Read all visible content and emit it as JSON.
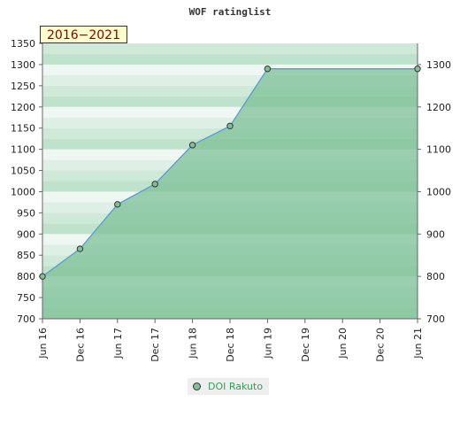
{
  "chart_data": {
    "type": "area",
    "title": "WOF ratinglist",
    "period_label": "2016−2021",
    "x": [
      "Jun 16",
      "Dec 16",
      "Jun 17",
      "Dec 17",
      "Jun 18",
      "Dec 18",
      "Jun 19",
      "Jun 21"
    ],
    "x_ticks": [
      "Jun 16",
      "Dec 16",
      "Jun 17",
      "Dec 17",
      "Jun 18",
      "Dec 18",
      "Jun 19",
      "Dec 19",
      "Jun 20",
      "Dec 20",
      "Jun 21"
    ],
    "ylim": [
      700,
      1350
    ],
    "y_ticks_left": [
      700,
      750,
      800,
      850,
      900,
      950,
      1000,
      1050,
      1100,
      1150,
      1200,
      1250,
      1300,
      1350
    ],
    "y_ticks_right": [
      700,
      800,
      900,
      1000,
      1100,
      1200,
      1300
    ],
    "series": [
      {
        "name": "DOI Rakuto",
        "x_index": [
          0,
          1,
          2,
          3,
          4,
          5,
          6,
          10
        ],
        "values": [
          800,
          865,
          970,
          1018,
          1110,
          1155,
          1290,
          1290
        ]
      }
    ],
    "legend": "bottom-center",
    "colors": {
      "line": "#5b9bd5",
      "fill": "#7ec097",
      "marker": "#7ec097",
      "band_light": "#eef7f1",
      "band_dark": "#bfe2cc",
      "legend_text": "#3a9a5a",
      "period_text": "#8b0000"
    }
  }
}
